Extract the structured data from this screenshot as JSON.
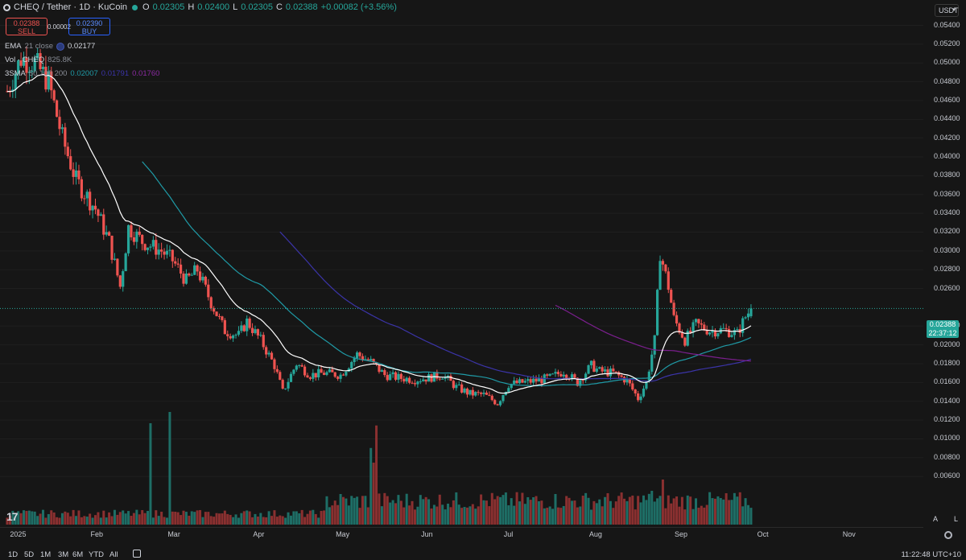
{
  "header": {
    "symbol": "CHEQ / Tether · 1D · KuCoin",
    "o_label": "O",
    "o": "0.02305",
    "h_label": "H",
    "h": "0.02400",
    "l_label": "L",
    "l": "0.02305",
    "c_label": "C",
    "c": "0.02388",
    "change": "+0.00082 (+3.56%)"
  },
  "trade": {
    "sell_price": "0.02388",
    "sell_label": "SELL",
    "spread": "0.00002",
    "buy_price": "0.02390",
    "buy_label": "BUY"
  },
  "indicators": {
    "ema": {
      "name": "EMA",
      "params": "21 close",
      "value": "0.02177"
    },
    "vol": {
      "name": "Vol · CHEQ",
      "value": "825.8K"
    },
    "sma": {
      "name": "3SMA",
      "params": "50 100 200",
      "v1": "0.02007",
      "v2": "0.01791",
      "v3": "0.01760"
    }
  },
  "currency": "USDT",
  "price_tag": {
    "price": "0.02388",
    "countdown": "22:37:12"
  },
  "ranges": [
    "1D",
    "5D",
    "1M",
    "3M",
    "6M",
    "YTD",
    "All"
  ],
  "clock": "11:22:48 UTC+10",
  "buttons": {
    "auto": "A",
    "log": "L"
  },
  "logo": "17",
  "colors": {
    "up": "#26a69a",
    "down": "#ef5350",
    "ema": "#ffffff",
    "sma50": "#1f9aa6",
    "sma100": "#3b34a8",
    "sma200": "#7b1f8e",
    "bg": "#161616"
  },
  "chart_data": {
    "type": "candlestick",
    "title": "CHEQ / Tether · 1D · KuCoin",
    "y_ticks": [
      "0.05400",
      "0.05200",
      "0.05000",
      "0.04800",
      "0.04600",
      "0.04400",
      "0.04200",
      "0.04000",
      "0.03800",
      "0.03600",
      "0.03400",
      "0.03200",
      "0.03000",
      "0.02800",
      "0.02600",
      "0.02200",
      "0.02000",
      "0.01800",
      "0.01600",
      "0.01400",
      "0.01200",
      "0.01000",
      "0.00800",
      "0.00600"
    ],
    "y_range": [
      0.0055,
      0.0555
    ],
    "x_ticks": [
      "2025",
      "Feb",
      "Mar",
      "Apr",
      "May",
      "Jun",
      "Jul",
      "Aug",
      "Sep",
      "Oct",
      "Nov"
    ],
    "x_start": "2024-12-31",
    "last_date": "2025-09-27",
    "x_end": "2025-11-23",
    "close_anchors": [
      [
        "2024-12-31",
        0.047
      ],
      [
        "2025-01-05",
        0.0505
      ],
      [
        "2025-01-10",
        0.05
      ],
      [
        "2025-01-15",
        0.048
      ],
      [
        "2025-01-20",
        0.042
      ],
      [
        "2025-01-25",
        0.0375
      ],
      [
        "2025-02-01",
        0.0345
      ],
      [
        "2025-02-06",
        0.031
      ],
      [
        "2025-02-10",
        0.0262
      ],
      [
        "2025-02-13",
        0.0325
      ],
      [
        "2025-02-18",
        0.031
      ],
      [
        "2025-02-25",
        0.03
      ],
      [
        "2025-03-01",
        0.029
      ],
      [
        "2025-03-06",
        0.0268
      ],
      [
        "2025-03-10",
        0.028
      ],
      [
        "2025-03-15",
        0.0245
      ],
      [
        "2025-03-20",
        0.0215
      ],
      [
        "2025-03-25",
        0.021
      ],
      [
        "2025-03-28",
        0.0225
      ],
      [
        "2025-04-02",
        0.0205
      ],
      [
        "2025-04-07",
        0.0178
      ],
      [
        "2025-04-10",
        0.015
      ],
      [
        "2025-04-15",
        0.018
      ],
      [
        "2025-04-20",
        0.0168
      ],
      [
        "2025-04-25",
        0.017
      ],
      [
        "2025-05-01",
        0.0168
      ],
      [
        "2025-05-07",
        0.019
      ],
      [
        "2025-05-12",
        0.0182
      ],
      [
        "2025-05-17",
        0.0168
      ],
      [
        "2025-05-22",
        0.0165
      ],
      [
        "2025-05-28",
        0.0163
      ],
      [
        "2025-06-02",
        0.0165
      ],
      [
        "2025-06-07",
        0.0168
      ],
      [
        "2025-06-12",
        0.0155
      ],
      [
        "2025-06-17",
        0.0148
      ],
      [
        "2025-06-22",
        0.0147
      ],
      [
        "2025-06-27",
        0.0138
      ],
      [
        "2025-07-01",
        0.0158
      ],
      [
        "2025-07-06",
        0.016
      ],
      [
        "2025-07-11",
        0.0162
      ],
      [
        "2025-07-16",
        0.0165
      ],
      [
        "2025-07-21",
        0.0172
      ],
      [
        "2025-07-26",
        0.016
      ],
      [
        "2025-07-31",
        0.0178
      ],
      [
        "2025-08-03",
        0.0172
      ],
      [
        "2025-08-08",
        0.017
      ],
      [
        "2025-08-13",
        0.0162
      ],
      [
        "2025-08-17",
        0.0143
      ],
      [
        "2025-08-20",
        0.016
      ],
      [
        "2025-08-23",
        0.0205
      ],
      [
        "2025-08-25",
        0.0298
      ],
      [
        "2025-08-28",
        0.0262
      ],
      [
        "2025-08-30",
        0.0228
      ],
      [
        "2025-09-03",
        0.0205
      ],
      [
        "2025-09-07",
        0.0222
      ],
      [
        "2025-09-12",
        0.0215
      ],
      [
        "2025-09-17",
        0.0216
      ],
      [
        "2025-09-22",
        0.0212
      ],
      [
        "2025-09-25",
        0.023
      ],
      [
        "2025-09-27",
        0.02388
      ]
    ],
    "volume_spikes": [
      [
        "2025-02-21",
        0.9
      ],
      [
        "2025-02-28",
        1.0
      ],
      [
        "2025-05-14",
        0.88
      ],
      [
        "2025-05-12",
        0.68
      ],
      [
        "2025-05-13",
        0.55
      ],
      [
        "2025-08-26",
        0.4
      ],
      [
        "2025-08-22",
        0.3
      ]
    ],
    "volume_base": 0.12,
    "series": [
      {
        "name": "EMA 21 close",
        "last": 0.02177
      },
      {
        "name": "SMA 50",
        "last": 0.02007
      },
      {
        "name": "SMA 100",
        "last": 0.01791
      },
      {
        "name": "SMA 200",
        "last": 0.0176
      }
    ]
  }
}
